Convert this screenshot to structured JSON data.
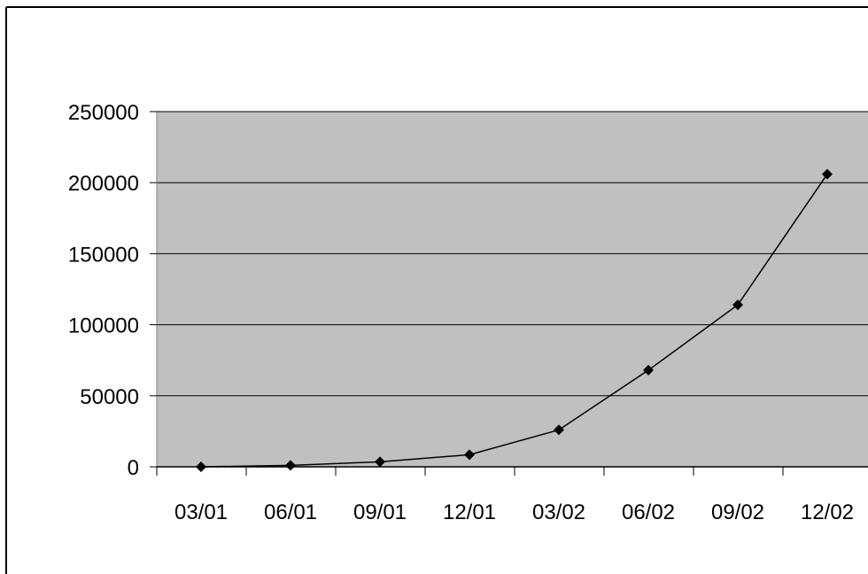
{
  "chart_data": {
    "type": "line",
    "title": "",
    "xlabel": "",
    "ylabel": "",
    "categories": [
      "03/01",
      "06/01",
      "09/01",
      "12/01",
      "03/02",
      "06/02",
      "09/02",
      "12/02"
    ],
    "series": [
      {
        "values": [
          0,
          1000,
          3500,
          8500,
          26000,
          68000,
          114000,
          206000
        ]
      }
    ],
    "y_ticks": [
      "0",
      "50000",
      "100000",
      "150000",
      "200000",
      "250000"
    ],
    "ylim": [
      0,
      250000
    ],
    "grid": "horizontal",
    "legend": "none",
    "colors": {
      "plot_background": "#c0c0c0",
      "line": "#000000",
      "marker": "#000000",
      "gridline": "#000000"
    }
  }
}
